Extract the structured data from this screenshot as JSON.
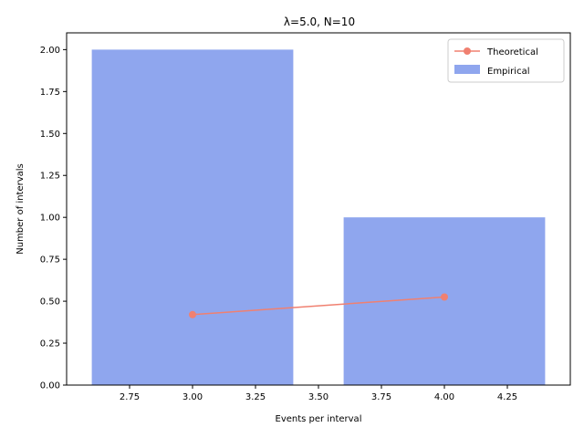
{
  "chart_data": {
    "type": "bar",
    "title": "λ=5.0, N=10",
    "xlabel": "Events per interval",
    "ylabel": "Number of intervals",
    "xlim": [
      2.5,
      4.5
    ],
    "ylim": [
      0,
      2.1
    ],
    "xticks": [
      2.75,
      3.0,
      3.25,
      3.5,
      3.75,
      4.0,
      4.25
    ],
    "xtick_labels": [
      "2.75",
      "3.00",
      "3.25",
      "3.50",
      "3.75",
      "4.00",
      "4.25"
    ],
    "yticks": [
      0,
      0.25,
      0.5,
      0.75,
      1.0,
      1.25,
      1.5,
      1.75,
      2.0
    ],
    "ytick_labels": [
      "0.00",
      "0.25",
      "0.50",
      "0.75",
      "1.00",
      "1.25",
      "1.50",
      "1.75",
      "2.00"
    ],
    "bar_width": 0.8,
    "series": [
      {
        "name": "Empirical",
        "kind": "bar",
        "color": "#8fa6ee",
        "x": [
          3,
          4
        ],
        "values": [
          2,
          1
        ]
      },
      {
        "name": "Theoretical",
        "kind": "line",
        "color": "#f08070",
        "marker": "circle",
        "x": [
          3,
          4
        ],
        "values": [
          0.42,
          0.525
        ]
      }
    ],
    "legend": {
      "position": "top-right",
      "entries": [
        "Theoretical",
        "Empirical"
      ]
    },
    "grid": false
  }
}
